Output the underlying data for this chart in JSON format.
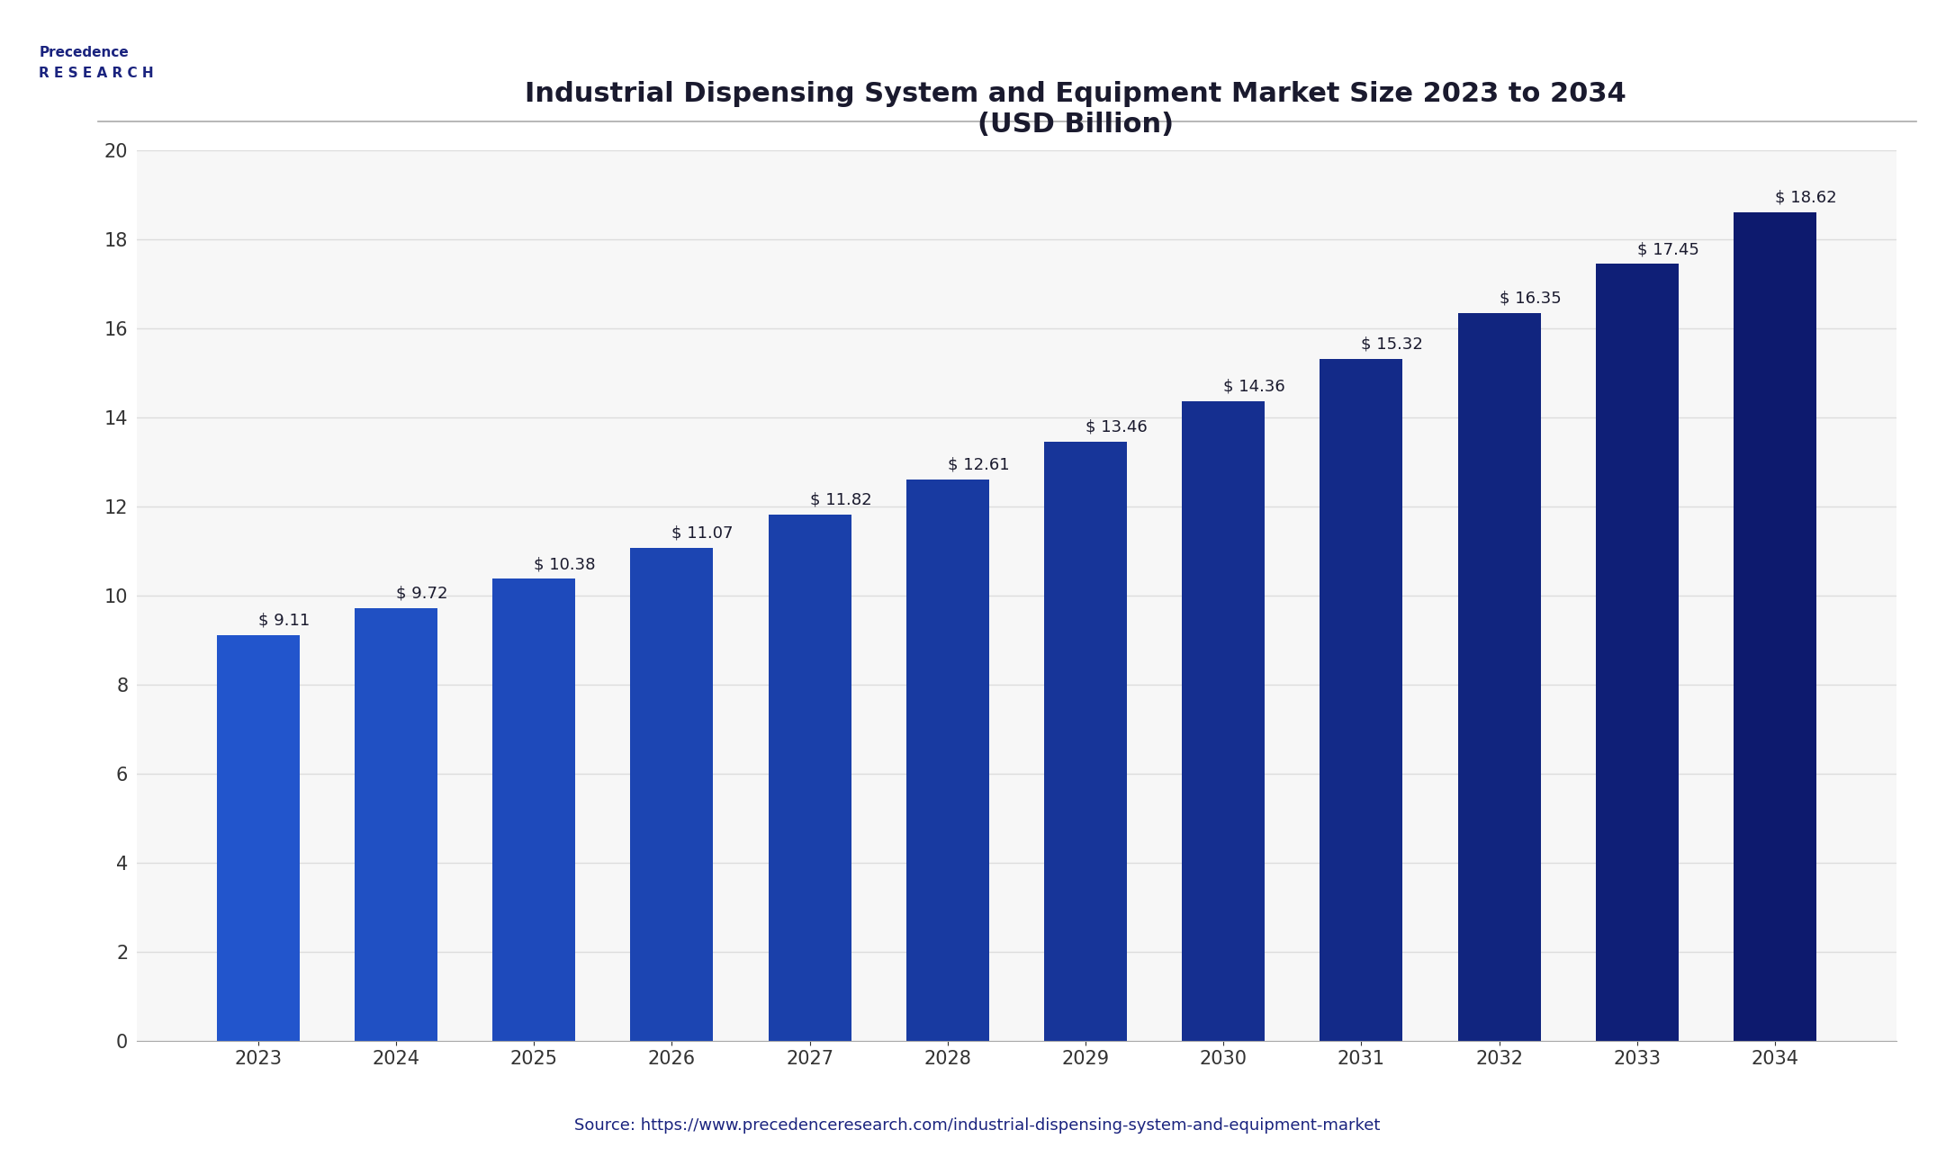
{
  "title_line1": "Industrial Dispensing System and Equipment Market Size 2023 to 2034",
  "title_line2": "(USD Billion)",
  "categories": [
    "2023",
    "2024",
    "2025",
    "2026",
    "2027",
    "2028",
    "2029",
    "2030",
    "2031",
    "2032",
    "2033",
    "2034"
  ],
  "values": [
    9.11,
    9.72,
    10.38,
    11.07,
    11.82,
    12.61,
    13.46,
    14.36,
    15.32,
    16.35,
    17.45,
    18.62
  ],
  "bar_colors_early": "#2255cc",
  "bar_colors_late": "#0d1a6e",
  "ylim": [
    0,
    20
  ],
  "yticks": [
    0,
    2,
    4,
    6,
    8,
    10,
    12,
    14,
    16,
    18,
    20
  ],
  "background_color": "#ffffff",
  "plot_bg_color": "#f7f7f7",
  "grid_color": "#dddddd",
  "source_text": "Source: https://www.precedenceresearch.com/industrial-dispensing-system-and-equipment-market",
  "source_color": "#1a237e",
  "title_color": "#1a1a2e",
  "label_color": "#1a1a2e",
  "axis_color": "#333333",
  "bar_label_fontsize": 13,
  "title_fontsize": 22,
  "tick_fontsize": 15,
  "source_fontsize": 13
}
